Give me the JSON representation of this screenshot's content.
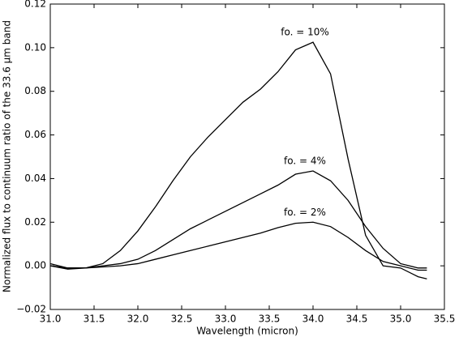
{
  "chart_data": {
    "type": "line",
    "xlabel": "Wavelength (micron)",
    "ylabel": "Normalized flux to continuum ratio of the 33.6 μm band",
    "x": [
      31.0,
      31.2,
      31.4,
      31.6,
      31.8,
      32.0,
      32.2,
      32.4,
      32.6,
      32.8,
      33.0,
      33.2,
      33.4,
      33.6,
      33.8,
      34.0,
      34.2,
      34.4,
      34.6,
      34.8,
      35.0,
      35.2,
      35.3
    ],
    "series": [
      {
        "name": "fo. = 10%",
        "color": "#000000",
        "values": [
          0.001,
          -0.001,
          -0.001,
          0.001,
          0.007,
          0.016,
          0.027,
          0.039,
          0.05,
          0.059,
          0.067,
          0.075,
          0.081,
          0.089,
          0.099,
          0.1025,
          0.088,
          0.049,
          0.014,
          0.0,
          -0.001,
          -0.005,
          -0.006
        ]
      },
      {
        "name": "fo. = 4%",
        "color": "#000000",
        "values": [
          0.0,
          -0.001,
          -0.001,
          0.0,
          0.001,
          0.003,
          0.007,
          0.012,
          0.017,
          0.021,
          0.025,
          0.029,
          0.033,
          0.037,
          0.042,
          0.0435,
          0.039,
          0.03,
          0.018,
          0.008,
          0.001,
          -0.001,
          -0.001
        ]
      },
      {
        "name": "fo. = 2%",
        "color": "#000000",
        "values": [
          0.0,
          -0.0015,
          -0.001,
          -0.0005,
          0.0,
          0.001,
          0.003,
          0.005,
          0.007,
          0.009,
          0.011,
          0.013,
          0.015,
          0.0175,
          0.0195,
          0.02,
          0.018,
          0.013,
          0.007,
          0.002,
          0.0,
          -0.002,
          -0.002
        ]
      }
    ],
    "xlim": [
      31.0,
      35.5
    ],
    "xticks": [
      {
        "value": 31,
        "label": "31.0"
      },
      31.5,
      {
        "value": 32,
        "label": "32.0"
      },
      32.5,
      {
        "value": 33,
        "label": "33.0"
      },
      33.5,
      {
        "value": 34,
        "label": "34.0"
      },
      34.5,
      {
        "value": 35,
        "label": "35.0"
      },
      35.5
    ],
    "ylim": [
      -0.02,
      0.12
    ],
    "yticks": [
      {
        "value": -0.02,
        "label": "−0.02"
      },
      {
        "value": 0,
        "label": "0.00"
      },
      0.02,
      0.04,
      0.06,
      0.08,
      {
        "value": 0.1,
        "label": "0.10"
      },
      0.12
    ]
  }
}
